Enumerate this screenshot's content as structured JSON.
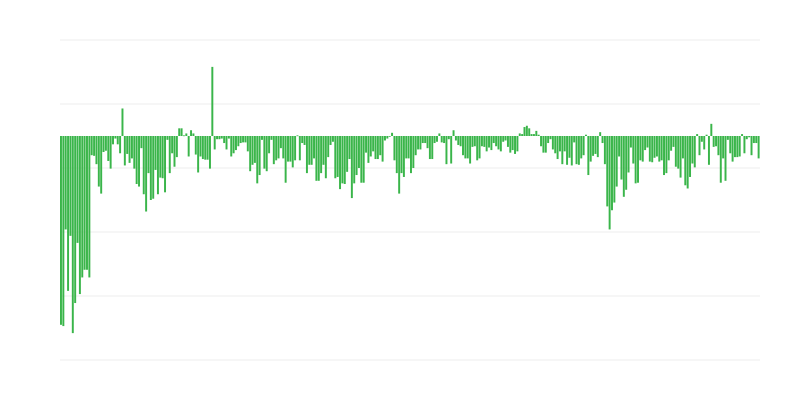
{
  "chart_data": {
    "type": "bar",
    "title": "",
    "xlabel": "",
    "ylabel": "",
    "ylim": [
      -3.5,
      1.5
    ],
    "gridlines": [
      1.5,
      0.5,
      -0.5,
      -1.5,
      -2.5,
      -3.5
    ],
    "grid": true,
    "bar_color": "#3ab54a",
    "grid_color": "#eeeeee",
    "values": [
      -2.95,
      -2.97,
      -1.46,
      -2.42,
      -1.56,
      -3.08,
      -2.61,
      -1.67,
      -2.47,
      -2.21,
      -2.09,
      -2.09,
      -2.21,
      -0.3,
      -0.31,
      -0.44,
      -0.79,
      -0.9,
      -0.25,
      -0.23,
      -0.39,
      -0.51,
      -0.13,
      -0.04,
      -0.13,
      -0.27,
      0.43,
      -0.46,
      -0.28,
      -0.42,
      -0.35,
      -0.51,
      -0.75,
      -0.79,
      -0.19,
      -0.91,
      -1.18,
      -0.58,
      -1.0,
      -0.98,
      -0.53,
      -0.91,
      -0.65,
      -0.66,
      -0.88,
      -0.06,
      -0.58,
      -0.27,
      -0.48,
      -0.33,
      0.12,
      0.12,
      0.01,
      0.04,
      -0.32,
      0.09,
      0.04,
      -0.29,
      -0.57,
      -0.32,
      -0.36,
      -0.37,
      -0.37,
      -0.51,
      1.08,
      -0.21,
      -0.05,
      -0.05,
      -0.04,
      -0.11,
      -0.21,
      -0.04,
      -0.32,
      -0.27,
      -0.22,
      -0.16,
      -0.11,
      -0.1,
      -0.1,
      -0.24,
      -0.55,
      -0.45,
      -0.42,
      -0.74,
      -0.61,
      -0.06,
      -0.51,
      -0.55,
      -0.27,
      -0.06,
      -0.44,
      -0.38,
      -0.35,
      -0.19,
      -0.35,
      -0.73,
      -0.4,
      -0.4,
      -0.49,
      -0.38,
      0.01,
      -0.38,
      -0.11,
      -0.14,
      -0.58,
      -0.45,
      -0.45,
      -0.35,
      -0.7,
      -0.7,
      -0.58,
      -0.45,
      -0.66,
      -0.33,
      -0.14,
      -0.09,
      -0.66,
      -0.64,
      -0.83,
      -0.74,
      -0.75,
      -0.56,
      -0.36,
      -0.97,
      -0.74,
      -0.61,
      -0.5,
      -0.73,
      -0.73,
      -0.26,
      -0.42,
      -0.32,
      -0.24,
      -0.36,
      -0.36,
      -0.3,
      -0.4,
      -0.07,
      -0.04,
      -0.01,
      0.05,
      -0.38,
      -0.58,
      -0.9,
      -0.58,
      -0.64,
      -0.35,
      -0.35,
      -0.58,
      -0.5,
      -0.3,
      -0.21,
      -0.21,
      -0.11,
      -0.11,
      -0.19,
      -0.36,
      -0.36,
      -0.11,
      -0.09,
      0.04,
      -0.1,
      -0.11,
      -0.44,
      -0.05,
      -0.43,
      0.09,
      -0.07,
      -0.14,
      -0.16,
      -0.3,
      -0.35,
      -0.35,
      -0.43,
      -0.17,
      -0.16,
      -0.38,
      -0.35,
      -0.16,
      -0.17,
      -0.24,
      -0.18,
      -0.22,
      -0.11,
      -0.16,
      -0.21,
      -0.24,
      -0.09,
      -0.07,
      -0.17,
      -0.26,
      -0.22,
      -0.28,
      -0.24,
      0.04,
      0.03,
      0.14,
      0.16,
      0.12,
      0.03,
      0.03,
      0.08,
      0.02,
      -0.16,
      -0.26,
      -0.26,
      -0.11,
      -0.05,
      -0.21,
      -0.27,
      -0.36,
      -0.24,
      -0.44,
      -0.24,
      -0.45,
      -0.34,
      -0.46,
      -0.1,
      -0.44,
      -0.45,
      -0.35,
      -0.3,
      0.02,
      -0.61,
      -0.4,
      -0.31,
      -0.28,
      -0.33,
      0.06,
      -0.11,
      -0.44,
      -1.1,
      -1.46,
      -1.16,
      -1.04,
      -0.79,
      -0.32,
      -0.68,
      -0.95,
      -0.84,
      -0.57,
      -0.18,
      -0.43,
      -0.74,
      -0.73,
      -0.38,
      -0.4,
      -0.22,
      -0.18,
      -0.4,
      -0.41,
      -0.34,
      -0.32,
      -0.4,
      -0.38,
      -0.61,
      -0.58,
      -0.38,
      -0.23,
      -0.17,
      -0.48,
      -0.51,
      -0.65,
      -0.35,
      -0.77,
      -0.82,
      -0.64,
      -0.43,
      -0.49,
      0.03,
      -0.3,
      -0.09,
      -0.21,
      0.02,
      -0.45,
      0.19,
      -0.17,
      -0.16,
      -0.3,
      -0.73,
      -0.35,
      -0.7,
      -0.06,
      -0.27,
      -0.4,
      -0.33,
      -0.33,
      -0.32,
      0.03,
      -0.27,
      -0.05,
      -0.02,
      -0.3,
      -0.11,
      -0.11,
      -0.35
    ]
  }
}
